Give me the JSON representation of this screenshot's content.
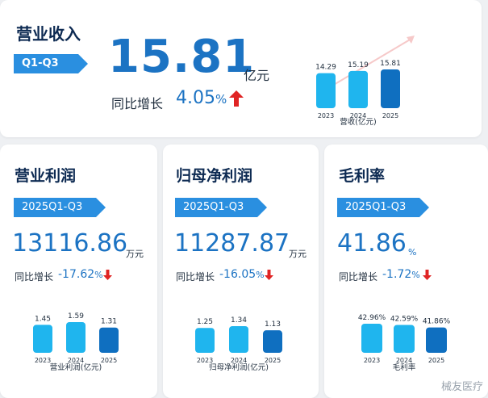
{
  "revenue": {
    "title": "营业收入",
    "period": "Q1-Q3",
    "value": "15.81",
    "unit": "亿元",
    "yoy_label": "同比增长",
    "yoy_value": "4.05",
    "yoy_pct": "%",
    "arrow": "up-arrow-icon"
  },
  "operating_profit": {
    "title": "营业利润",
    "period": "2025Q1-Q3",
    "value": "13116.86",
    "unit": "万元",
    "yoy_label": "同比增长",
    "yoy_value": "-17.62",
    "yoy_pct": "%",
    "arrow": "down-arrow-icon"
  },
  "net_profit": {
    "title": "归母净利润",
    "period": "2025Q1-Q3",
    "value": "11287.87",
    "unit": "万元",
    "yoy_label": "同比增长",
    "yoy_value": "-16.05",
    "yoy_pct": "%",
    "arrow": "down-arrow-icon"
  },
  "gross_margin": {
    "title": "毛利率",
    "period": "2025Q1-Q3",
    "value": "41.86",
    "unit": "%",
    "yoy_label": "同比增长",
    "yoy_value": "-1.72",
    "yoy_pct": "%",
    "arrow": "down-arrow-icon"
  },
  "colors": {
    "bar_light": "#1fb5ee",
    "bar_dark": "#0f6fc0",
    "accent": "#1c73c3",
    "down_arrow": "#e02424",
    "pill": "#2a8fe0"
  },
  "watermark": "械友医疗",
  "chart_data": [
    {
      "type": "bar",
      "categories": [
        "2023",
        "2024",
        "2025"
      ],
      "values": [
        14.29,
        15.19,
        15.81
      ],
      "labels": [
        "14.29",
        "15.19",
        "15.81"
      ],
      "title": "营收(亿元)"
    },
    {
      "type": "bar",
      "categories": [
        "2023",
        "2024",
        "2025"
      ],
      "values": [
        1.45,
        1.59,
        1.31
      ],
      "labels": [
        "1.45",
        "1.59",
        "1.31"
      ],
      "title": "营业利润(亿元)"
    },
    {
      "type": "bar",
      "categories": [
        "2023",
        "2024",
        "2025"
      ],
      "values": [
        1.25,
        1.34,
        1.13
      ],
      "labels": [
        "1.25",
        "1.34",
        "1.13"
      ],
      "title": "归母净利润(亿元)"
    },
    {
      "type": "bar",
      "categories": [
        "2023",
        "2024",
        "2025"
      ],
      "values": [
        42.96,
        42.59,
        41.86
      ],
      "labels": [
        "42.96%",
        "42.59%",
        "41.86%"
      ],
      "title": "毛利率"
    }
  ]
}
